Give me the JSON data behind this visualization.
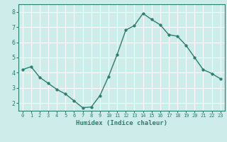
{
  "x": [
    0,
    1,
    2,
    3,
    4,
    5,
    6,
    7,
    8,
    9,
    10,
    11,
    12,
    13,
    14,
    15,
    16,
    17,
    18,
    19,
    20,
    21,
    22,
    23
  ],
  "y": [
    4.2,
    4.4,
    3.7,
    3.3,
    2.9,
    2.6,
    2.15,
    1.7,
    1.75,
    2.5,
    3.75,
    5.2,
    6.8,
    7.1,
    7.9,
    7.5,
    7.15,
    6.5,
    6.4,
    5.8,
    5.0,
    4.2,
    3.95,
    3.6
  ],
  "xlabel": "Humidex (Indice chaleur)",
  "ylim": [
    1.5,
    8.5
  ],
  "xlim": [
    -0.5,
    23.5
  ],
  "line_color": "#2e7d6e",
  "marker_color": "#2e7d6e",
  "bg_color": "#cdecea",
  "grid_color": "#ffffff",
  "tick_color": "#2e7d6e",
  "xlabel_color": "#2e7d6e",
  "yticks": [
    2,
    3,
    4,
    5,
    6,
    7,
    8
  ],
  "xticks": [
    0,
    1,
    2,
    3,
    4,
    5,
    6,
    7,
    8,
    9,
    10,
    11,
    12,
    13,
    14,
    15,
    16,
    17,
    18,
    19,
    20,
    21,
    22,
    23
  ],
  "tick_fontsize": 5.0,
  "xlabel_fontsize": 6.5,
  "ytick_fontsize": 6.0
}
